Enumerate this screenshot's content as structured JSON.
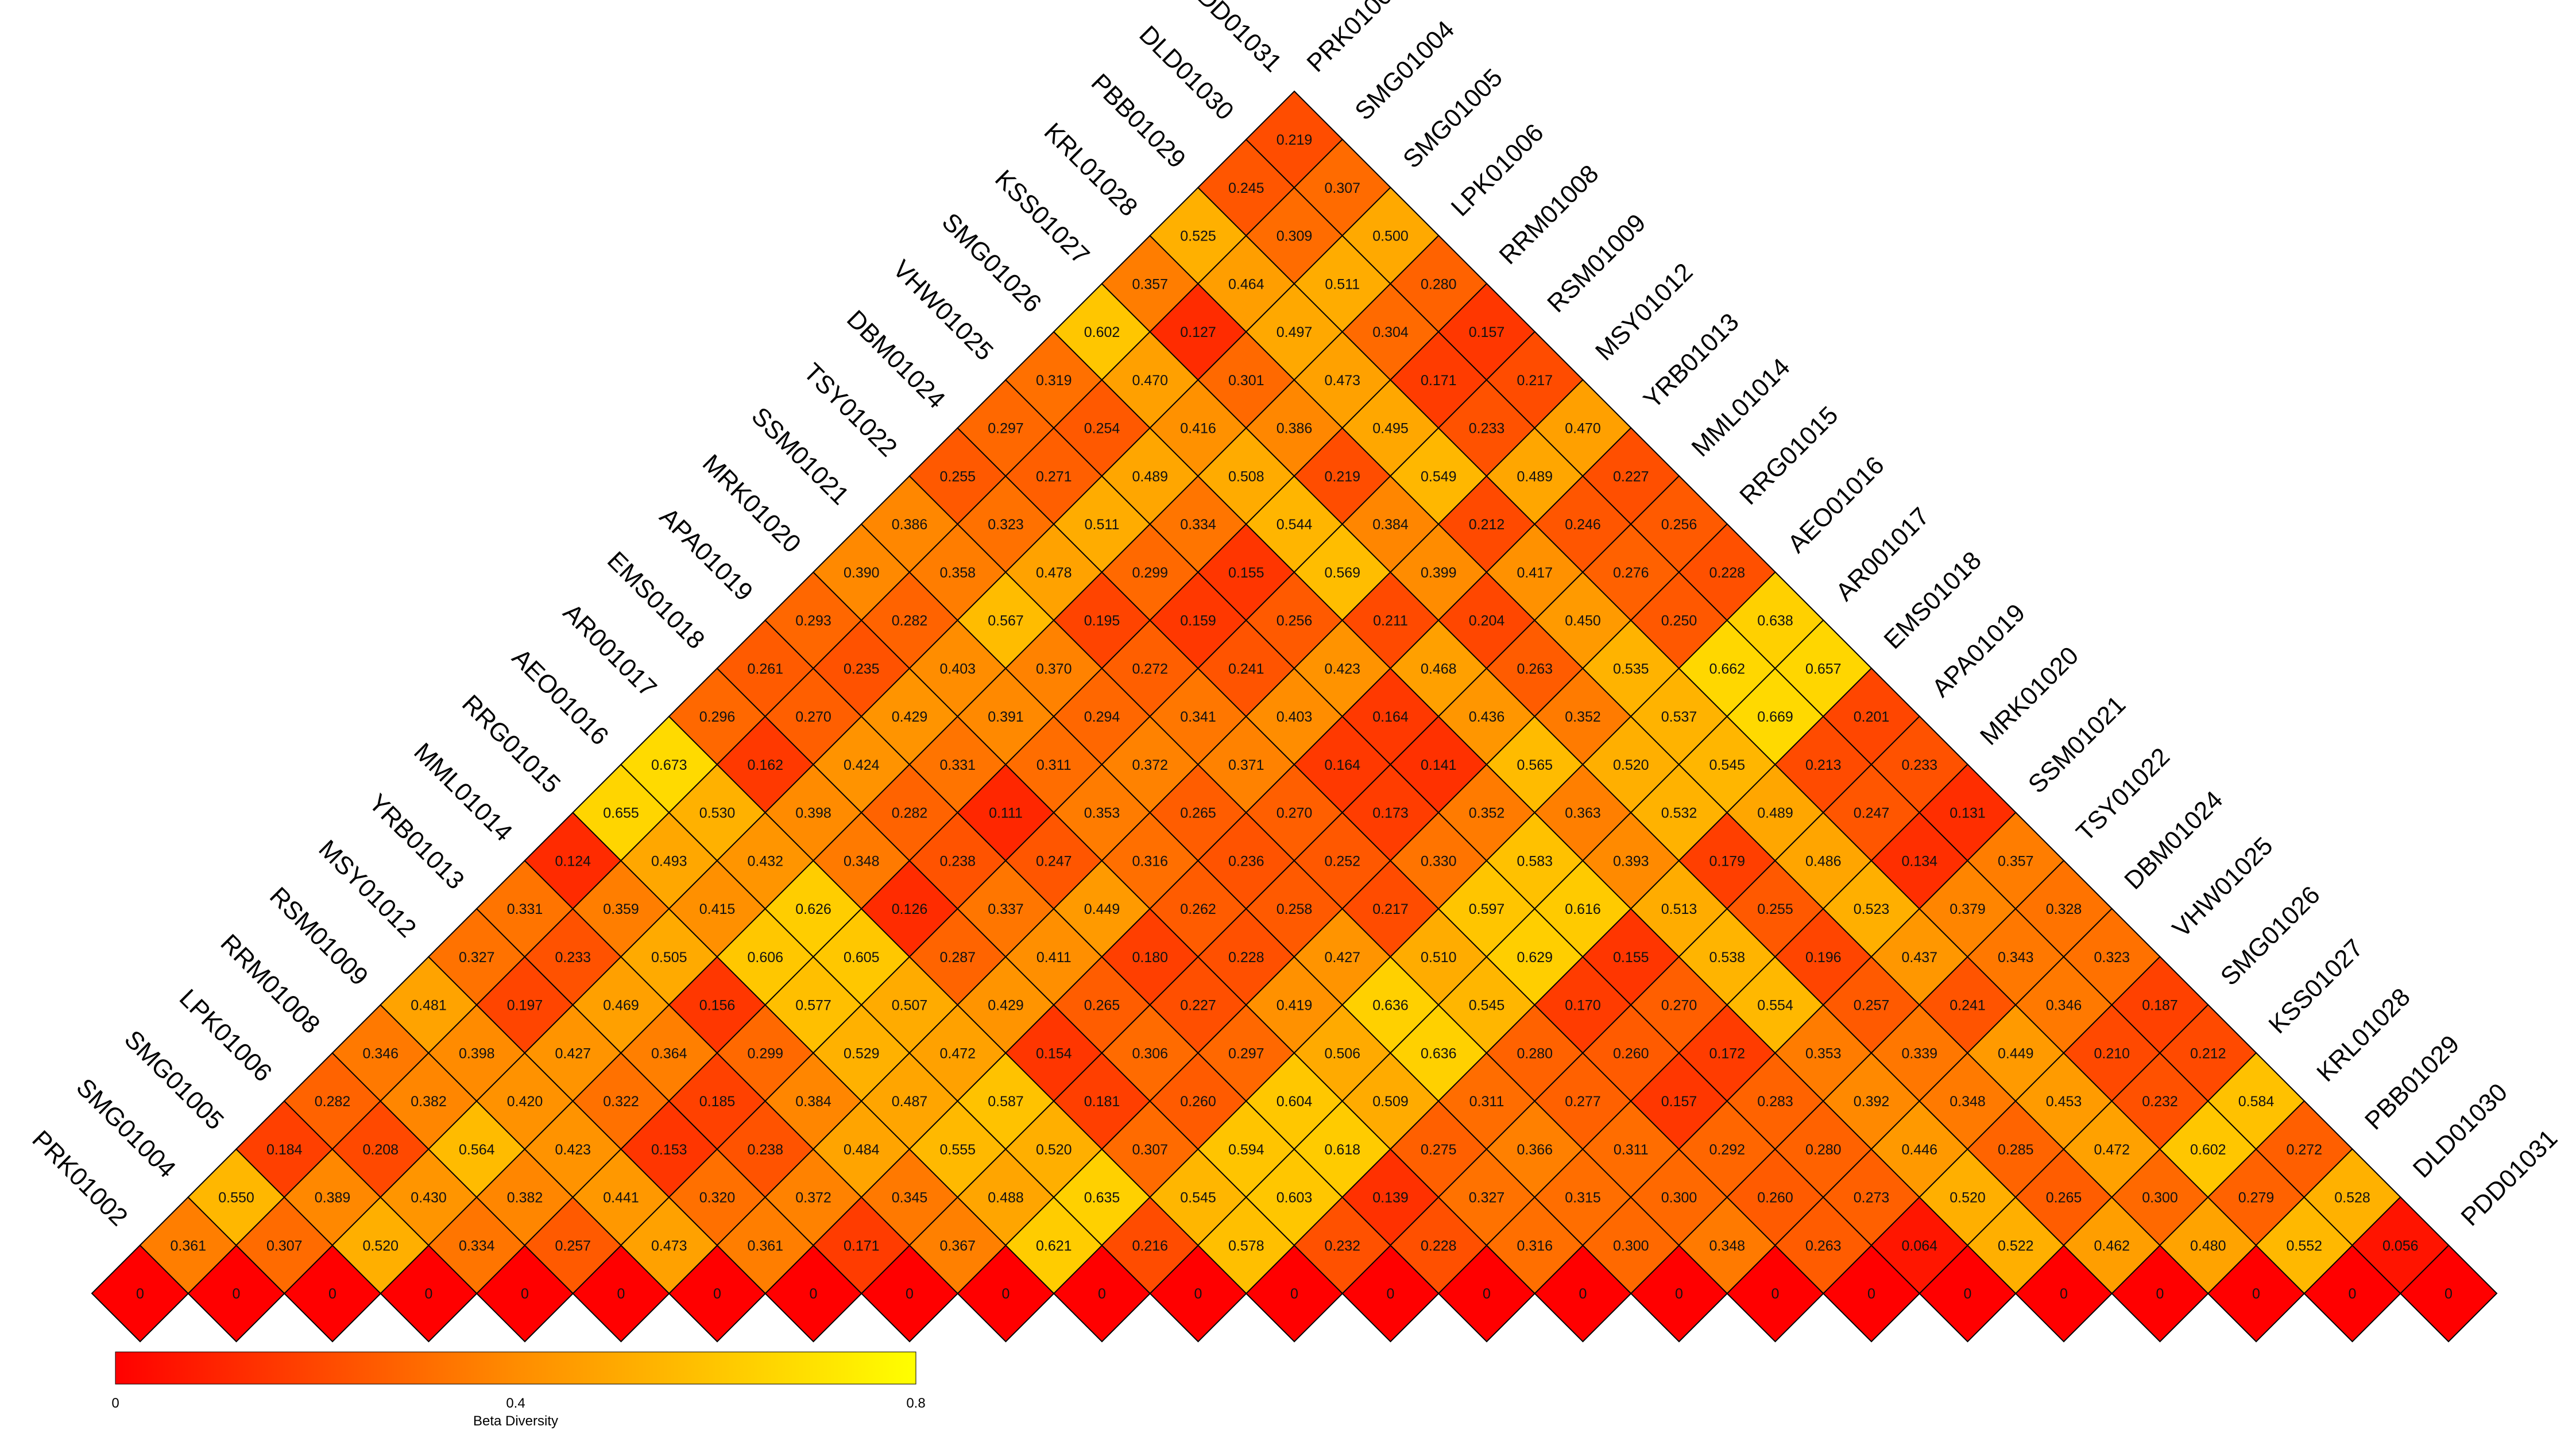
{
  "chart_data": {
    "type": "heatmap",
    "title": "",
    "samples": [
      "PRK01002",
      "SMG01004",
      "SMG01005",
      "LPK01006",
      "RRM01008",
      "RSM01009",
      "MSY01012",
      "YRB01013",
      "MML01014",
      "RRG01015",
      "AEO01016",
      "AR001017",
      "EMS01018",
      "APA01019",
      "MRK01020",
      "SSM01021",
      "TSY01022",
      "DBM01024",
      "VHW01025",
      "SMG01026",
      "KSS01027",
      "KRL01028",
      "PBB01029",
      "DLD01030",
      "PDD01031"
    ],
    "diagonal_value": "0",
    "rows": [
      [
        "0.361",
        "0.550",
        "0.184",
        "0.282",
        "0.346",
        "0.481",
        "0.327",
        "0.331",
        "0.124",
        "0.655",
        "0.673",
        "0.296",
        "0.261",
        "0.293",
        "0.390",
        "0.386",
        "0.255",
        "0.297",
        "0.319",
        "0.602",
        "0.357",
        "0.525",
        "0.245",
        "0.219"
      ],
      [
        "0.307",
        "0.389",
        "0.208",
        "0.382",
        "0.398",
        "0.197",
        "0.233",
        "0.359",
        "0.493",
        "0.530",
        "0.162",
        "0.270",
        "0.235",
        "0.282",
        "0.358",
        "0.323",
        "0.271",
        "0.254",
        "0.470",
        "0.127",
        "0.464",
        "0.309",
        "0.307"
      ],
      [
        "0.520",
        "0.430",
        "0.564",
        "0.420",
        "0.427",
        "0.469",
        "0.505",
        "0.415",
        "0.432",
        "0.398",
        "0.424",
        "0.429",
        "0.403",
        "0.567",
        "0.478",
        "0.511",
        "0.489",
        "0.416",
        "0.301",
        "0.497",
        "0.511",
        "0.500"
      ],
      [
        "0.334",
        "0.382",
        "0.423",
        "0.322",
        "0.364",
        "0.156",
        "0.606",
        "0.626",
        "0.348",
        "0.282",
        "0.331",
        "0.391",
        "0.370",
        "0.195",
        "0.299",
        "0.334",
        "0.508",
        "0.386",
        "0.473",
        "0.304",
        "0.280"
      ],
      [
        "0.257",
        "0.441",
        "0.153",
        "0.185",
        "0.299",
        "0.577",
        "0.605",
        "0.126",
        "0.238",
        "0.111",
        "0.311",
        "0.294",
        "0.272",
        "0.159",
        "0.155",
        "0.544",
        "0.219",
        "0.495",
        "0.171",
        "0.157"
      ],
      [
        "0.473",
        "0.320",
        "0.238",
        "0.384",
        "0.529",
        "0.507",
        "0.287",
        "0.337",
        "0.247",
        "0.353",
        "0.372",
        "0.341",
        "0.241",
        "0.256",
        "0.569",
        "0.384",
        "0.549",
        "0.233",
        "0.217"
      ],
      [
        "0.361",
        "0.372",
        "0.484",
        "0.487",
        "0.472",
        "0.429",
        "0.411",
        "0.449",
        "0.316",
        "0.265",
        "0.371",
        "0.403",
        "0.423",
        "0.211",
        "0.399",
        "0.212",
        "0.489",
        "0.470"
      ],
      [
        "0.171",
        "0.345",
        "0.555",
        "0.587",
        "0.154",
        "0.265",
        "0.180",
        "0.262",
        "0.236",
        "0.270",
        "0.164",
        "0.164",
        "0.468",
        "0.204",
        "0.417",
        "0.246",
        "0.227"
      ],
      [
        "0.367",
        "0.488",
        "0.520",
        "0.181",
        "0.306",
        "0.227",
        "0.228",
        "0.258",
        "0.252",
        "0.173",
        "0.141",
        "0.436",
        "0.263",
        "0.450",
        "0.276",
        "0.256"
      ],
      [
        "0.621",
        "0.635",
        "0.307",
        "0.260",
        "0.297",
        "0.419",
        "0.427",
        "0.217",
        "0.330",
        "0.352",
        "0.565",
        "0.352",
        "0.535",
        "0.250",
        "0.228"
      ],
      [
        "0.216",
        "0.545",
        "0.594",
        "0.604",
        "0.506",
        "0.636",
        "0.510",
        "0.597",
        "0.583",
        "0.363",
        "0.520",
        "0.537",
        "0.662",
        "0.638"
      ],
      [
        "0.578",
        "0.603",
        "0.618",
        "0.509",
        "0.636",
        "0.545",
        "0.629",
        "0.616",
        "0.393",
        "0.532",
        "0.545",
        "0.669",
        "0.657"
      ],
      [
        "0.232",
        "0.139",
        "0.275",
        "0.311",
        "0.280",
        "0.170",
        "0.155",
        "0.513",
        "0.179",
        "0.489",
        "0.213",
        "0.201"
      ],
      [
        "0.228",
        "0.327",
        "0.366",
        "0.277",
        "0.260",
        "0.270",
        "0.538",
        "0.255",
        "0.486",
        "0.247",
        "0.233"
      ],
      [
        "0.316",
        "0.315",
        "0.311",
        "0.157",
        "0.172",
        "0.554",
        "0.196",
        "0.523",
        "0.134",
        "0.131"
      ],
      [
        "0.300",
        "0.300",
        "0.292",
        "0.283",
        "0.353",
        "0.257",
        "0.437",
        "0.379",
        "0.357"
      ],
      [
        "0.348",
        "0.260",
        "0.280",
        "0.392",
        "0.339",
        "0.241",
        "0.343",
        "0.328"
      ],
      [
        "0.263",
        "0.273",
        "0.446",
        "0.348",
        "0.449",
        "0.346",
        "0.323"
      ],
      [
        "0.064",
        "0.520",
        "0.285",
        "0.453",
        "0.210",
        "0.187"
      ],
      [
        "0.522",
        "0.265",
        "0.472",
        "0.232",
        "0.212"
      ],
      [
        "0.462",
        "0.300",
        "0.602",
        "0.584"
      ],
      [
        "0.480",
        "0.279",
        "0.272"
      ],
      [
        "0.552",
        "0.528"
      ],
      [
        "0.056"
      ]
    ],
    "colorbar": {
      "label": "Beta Diversity",
      "min": 0,
      "max": 0.8,
      "ticks": [
        "0",
        "0.4",
        "0.8"
      ],
      "colors": [
        "#ff0000",
        "#ff8c00",
        "#ffff00"
      ]
    }
  }
}
